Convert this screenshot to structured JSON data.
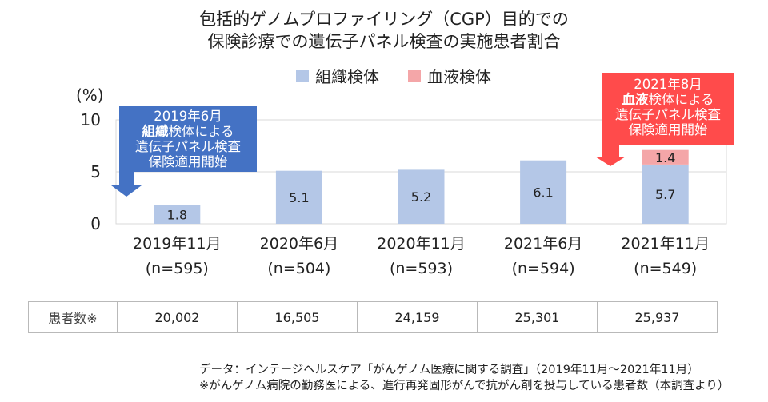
{
  "title_line1": "包括的ゲノムプロファイリング（CGP）目的での",
  "title_line2": "保険診療での遺伝子パネル検査の実施患者割合",
  "legend": [
    {
      "label": "組織検体",
      "color": "#b4c7e7"
    },
    {
      "label": "血液検体",
      "color": "#f4a6a8"
    }
  ],
  "chart_data": {
    "type": "bar",
    "stacked": true,
    "ylabel": "(%)",
    "ylim": [
      0,
      10
    ],
    "yticks": [
      "0",
      "5",
      "10"
    ],
    "grid": true,
    "categories": [
      "2019年11月",
      "2020年6月",
      "2020年11月",
      "2021年6月",
      "2021年11月"
    ],
    "category_sub": [
      "(n=595)",
      "(n=504)",
      "(n=593)",
      "(n=594)",
      "(n=549)"
    ],
    "series": [
      {
        "name": "組織検体",
        "color": "#b4c7e7",
        "values": [
          1.8,
          5.1,
          5.2,
          6.1,
          5.7
        ],
        "labels": [
          "1.8",
          "5.1",
          "5.2",
          "6.1",
          "5.7"
        ]
      },
      {
        "name": "血液検体",
        "color": "#f4a6a8",
        "values": [
          0,
          0,
          0,
          0,
          1.4
        ],
        "labels": [
          "",
          "",
          "",
          "",
          "1.4"
        ]
      }
    ]
  },
  "callouts": {
    "left": {
      "line1": "2019年6月",
      "bold": "組織",
      "rest": "検体による",
      "line3": "遺伝子パネル検査",
      "line4": "保険適用開始",
      "color": "#4472c4"
    },
    "right": {
      "line1": "2021年8月",
      "bold": "血液",
      "rest": "検体による",
      "line3": "遺伝子パネル検査",
      "line4": "保険適用開始",
      "color": "#ff4b4b"
    }
  },
  "patients_table": {
    "header": "患者数※",
    "values": [
      "20,002",
      "16,505",
      "24,159",
      "25,301",
      "25,937"
    ]
  },
  "notes": {
    "source": "データ：インテージヘルスケア「がんゲノム医療に関する調査」（2019年11月～2021年11月）",
    "footnote": "※がんゲノム病院の勤務医による、進行再発固形がんで抗がん剤を投与している患者数（本調査より）"
  }
}
